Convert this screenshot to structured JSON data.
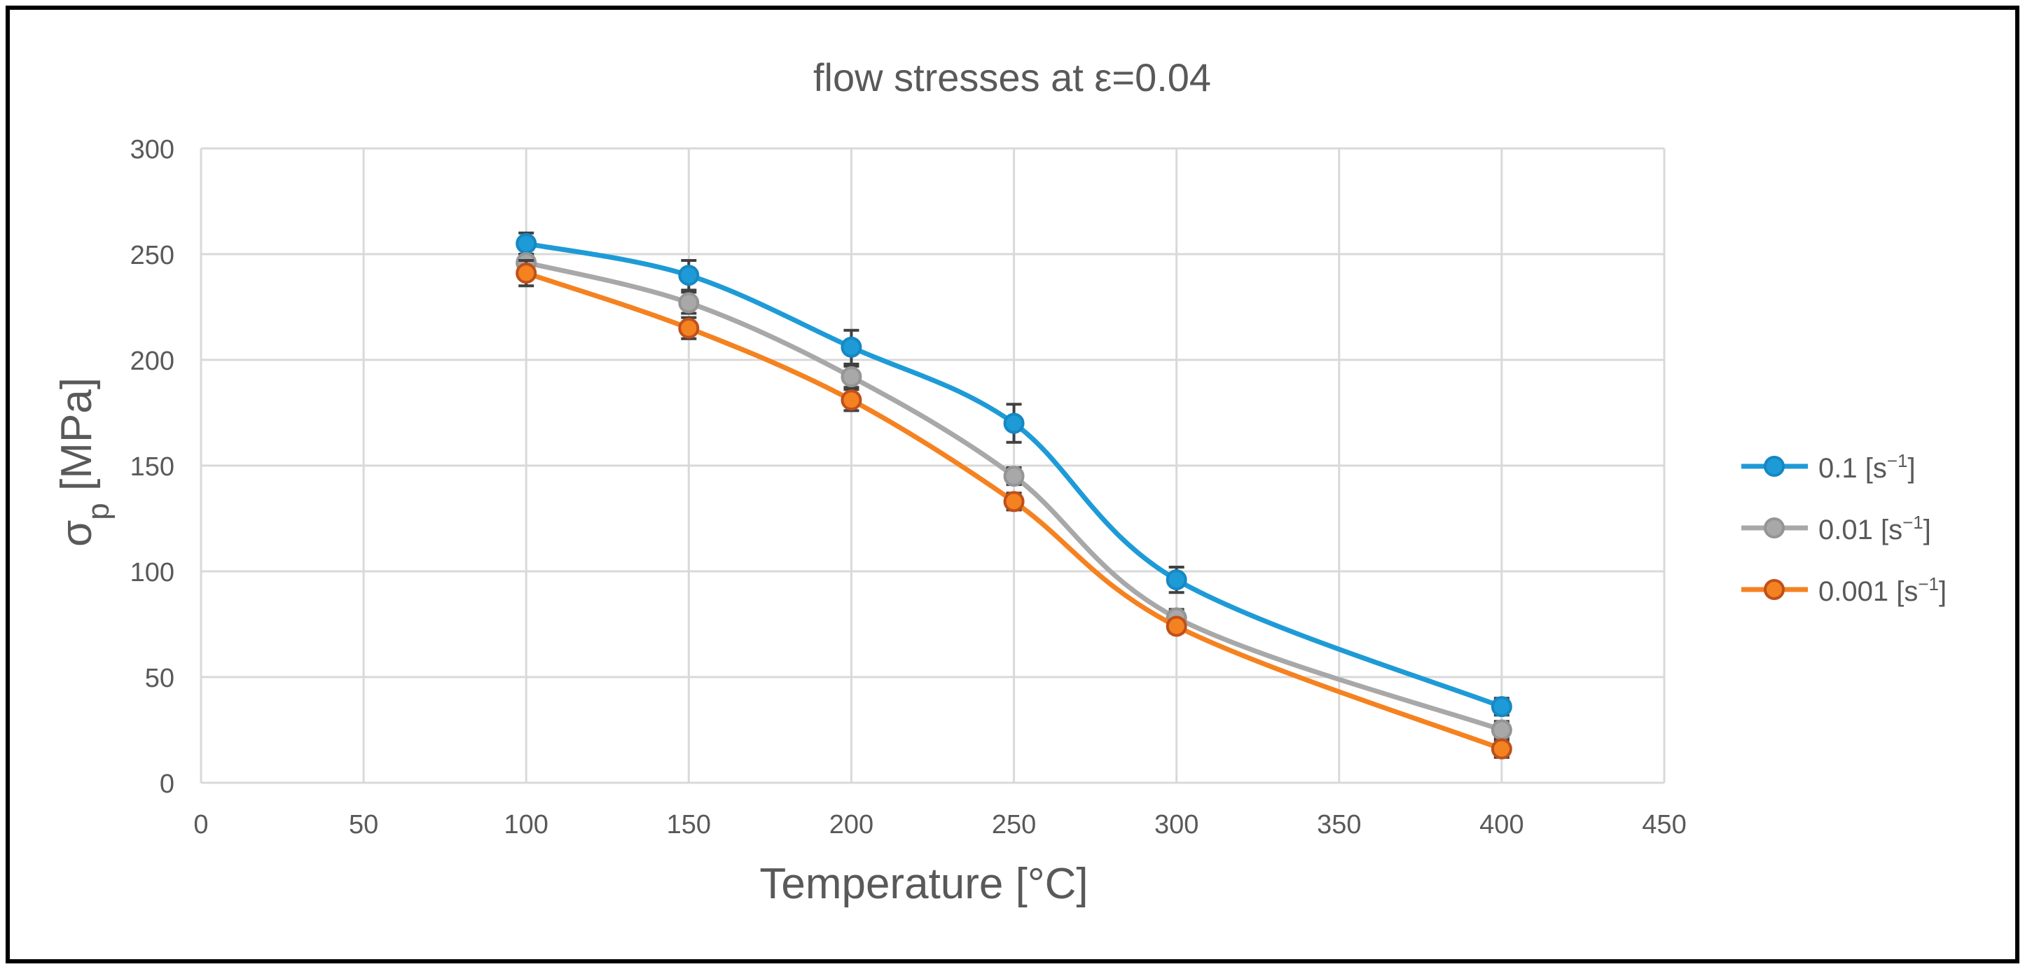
{
  "chart_data": {
    "type": "line",
    "title": "flow stresses at ε=0.04",
    "xlabel": "Temperature  [°C]",
    "ylabel": {
      "base": "σ",
      "subscript": "p",
      "unit": " [MPa]"
    },
    "xlim": [
      0,
      450
    ],
    "ylim": [
      0,
      300
    ],
    "xticks": [
      0,
      50,
      100,
      150,
      200,
      250,
      300,
      350,
      400,
      450
    ],
    "yticks": [
      0,
      50,
      100,
      150,
      200,
      250,
      300
    ],
    "grid": true,
    "smooth": true,
    "legend_position": "right",
    "x": [
      100,
      150,
      200,
      250,
      300,
      400
    ],
    "series": [
      {
        "name": "0.1 [s⁻¹]",
        "name_base": "0.1 [s",
        "name_sup": "−1",
        "name_end": "]",
        "color": "#1E9BD7",
        "marker_fill": "#1E9BD7",
        "marker_stroke": "#1588C4",
        "values": [
          255,
          240,
          206,
          170,
          96,
          36
        ],
        "errors": [
          5,
          7,
          8,
          9,
          6,
          4
        ]
      },
      {
        "name": "0.01 [s⁻¹]",
        "name_base": "0.01 [s",
        "name_sup": "−1",
        "name_end": "]",
        "color": "#A8A8A8",
        "marker_fill": "#A8A8A8",
        "marker_stroke": "#959595",
        "values": [
          246,
          227,
          192,
          145,
          78,
          25
        ],
        "errors": [
          4,
          5,
          5,
          4,
          4,
          4
        ]
      },
      {
        "name": "0.001 [s⁻¹]",
        "name_base": "0.001 [s",
        "name_sup": "−1",
        "name_end": "]",
        "color": "#F58220",
        "marker_fill": "#F58220",
        "marker_stroke": "#C0501B",
        "values": [
          241,
          215,
          181,
          133,
          74,
          16
        ],
        "errors": [
          6,
          5,
          5,
          4,
          3,
          4
        ]
      }
    ]
  },
  "colors": {
    "grid": "#D9D9D9",
    "axis_text": "#595959",
    "frame": "#000000",
    "error_bar": "#404040"
  }
}
